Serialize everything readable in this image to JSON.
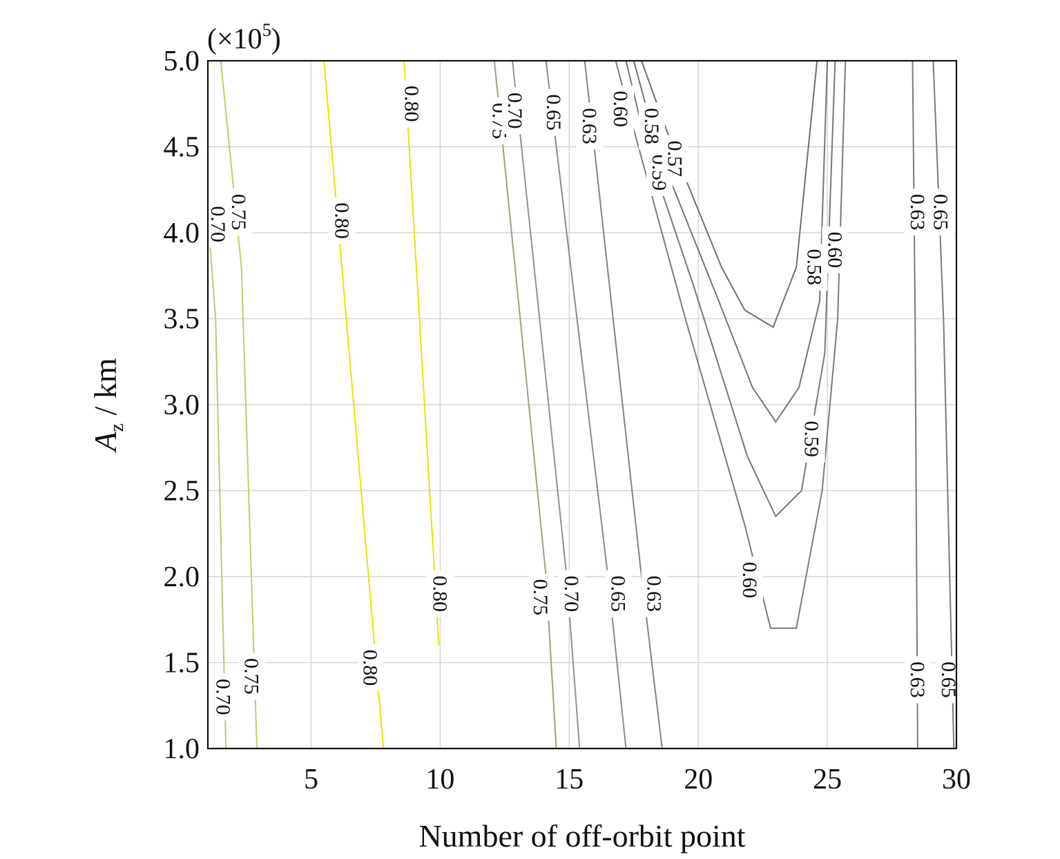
{
  "chart_data": {
    "type": "contour",
    "title": "",
    "xlabel": "Number of off-orbit point",
    "ylabel_main": "A",
    "ylabel_sub": "z",
    "ylabel_unit": " / km",
    "y_multiplier": "(×10",
    "y_multiplier_exp": "5",
    "y_multiplier_close": ")",
    "xlim": [
      1,
      30
    ],
    "ylim": [
      1.0,
      5.0
    ],
    "x_ticks": [
      5,
      10,
      15,
      20,
      25,
      30
    ],
    "x_tick_labels": [
      "5",
      "10",
      "15",
      "20",
      "25",
      "30"
    ],
    "y_ticks": [
      1.0,
      1.5,
      2.0,
      2.5,
      3.0,
      3.5,
      4.0,
      4.5,
      5.0
    ],
    "y_tick_labels": [
      "1.0",
      "1.5",
      "2.0",
      "2.5",
      "3.0",
      "3.5",
      "4.0",
      "4.5",
      "5.0"
    ],
    "grid": true,
    "colors": {
      "high": "#e6e600",
      "mid": "#c9c98a",
      "low": "#7a7a7a"
    },
    "contours": [
      {
        "level": "0.70",
        "color": "#c4c47a",
        "points": [
          [
            1.0,
            4.1
          ],
          [
            1.3,
            3.5
          ],
          [
            1.7,
            1.0
          ]
        ],
        "labels": [
          {
            "x": 1.4,
            "y": 4.05,
            "text": "0.70"
          },
          {
            "x": 1.6,
            "y": 1.3,
            "text": "0.70"
          }
        ]
      },
      {
        "level": "0.75",
        "color": "#c9c96a",
        "points": [
          [
            1.5,
            5.0
          ],
          [
            2.3,
            3.8
          ],
          [
            2.9,
            1.0
          ]
        ],
        "labels": [
          {
            "x": 2.2,
            "y": 4.12,
            "text": "0.75"
          },
          {
            "x": 2.7,
            "y": 1.42,
            "text": "0.75"
          }
        ]
      },
      {
        "level": "0.80",
        "color": "#e6e600",
        "points": [
          [
            5.5,
            5.0
          ],
          [
            7.8,
            1.0
          ]
        ],
        "labels": [
          {
            "x": 6.2,
            "y": 4.07,
            "text": "0.80"
          },
          {
            "x": 7.3,
            "y": 1.47,
            "text": "0.80"
          }
        ]
      },
      {
        "level": "0.80",
        "color": "#e6e600",
        "points": [
          [
            8.6,
            5.0
          ],
          [
            9.95,
            1.6
          ]
        ],
        "labels": [
          {
            "x": 8.9,
            "y": 4.75,
            "text": "0.80"
          },
          {
            "x": 10.0,
            "y": 1.9,
            "text": "0.80"
          }
        ]
      },
      {
        "level": "0.75",
        "color": "#a0a07a",
        "points": [
          [
            12.1,
            5.0
          ],
          [
            14.1,
            2.0
          ],
          [
            14.5,
            1.0
          ]
        ],
        "labels": [
          {
            "x": 12.3,
            "y": 4.65,
            "text": "0.75"
          },
          {
            "x": 13.9,
            "y": 1.88,
            "text": "0.75"
          }
        ]
      },
      {
        "level": "0.70",
        "color": "#909090",
        "points": [
          [
            12.8,
            5.0
          ],
          [
            14.9,
            2.0
          ],
          [
            15.4,
            1.0
          ]
        ],
        "labels": [
          {
            "x": 12.9,
            "y": 4.71,
            "text": "0.70"
          },
          {
            "x": 15.1,
            "y": 1.9,
            "text": "0.70"
          }
        ]
      },
      {
        "level": "0.65",
        "color": "#8a8a8a",
        "points": [
          [
            14.1,
            5.0
          ],
          [
            16.5,
            2.0
          ],
          [
            17.2,
            1.0
          ]
        ],
        "labels": [
          {
            "x": 14.4,
            "y": 4.7,
            "text": "0.65"
          },
          {
            "x": 16.9,
            "y": 1.9,
            "text": "0.65"
          }
        ]
      },
      {
        "level": "0.63",
        "color": "#828282",
        "points": [
          [
            15.6,
            5.0
          ],
          [
            17.8,
            2.0
          ],
          [
            18.6,
            1.0
          ]
        ],
        "labels": [
          {
            "x": 15.8,
            "y": 4.62,
            "text": "0.63"
          },
          {
            "x": 18.3,
            "y": 1.9,
            "text": "0.63"
          }
        ]
      },
      {
        "level": "0.60",
        "color": "#7a7a7a",
        "points": [
          [
            16.8,
            5.0
          ],
          [
            17.5,
            4.6
          ],
          [
            19.5,
            3.5
          ],
          [
            21.8,
            2.3
          ],
          [
            22.8,
            1.7
          ],
          [
            23.8,
            1.7
          ],
          [
            24.8,
            2.5
          ],
          [
            25.4,
            3.5
          ],
          [
            25.7,
            5.0
          ]
        ],
        "labels": [
          {
            "x": 17.0,
            "y": 4.72,
            "text": "0.60"
          },
          {
            "x": 22.0,
            "y": 1.98,
            "text": "0.60"
          },
          {
            "x": 25.3,
            "y": 3.9,
            "text": "0.60"
          }
        ]
      },
      {
        "level": "0.59",
        "color": "#777777",
        "points": [
          [
            17.2,
            5.0
          ],
          [
            18.0,
            4.5
          ],
          [
            19.8,
            3.7
          ],
          [
            21.9,
            2.7
          ],
          [
            23.0,
            2.35
          ],
          [
            24.0,
            2.5
          ],
          [
            24.9,
            3.3
          ],
          [
            25.3,
            5.0
          ]
        ],
        "labels": [
          {
            "x": 18.5,
            "y": 4.35,
            "text": "0.59"
          },
          {
            "x": 24.4,
            "y": 2.8,
            "text": "0.59"
          }
        ]
      },
      {
        "level": "0.58",
        "color": "#747474",
        "points": [
          [
            17.5,
            5.0
          ],
          [
            18.4,
            4.5
          ],
          [
            20.8,
            3.6
          ],
          [
            22.1,
            3.1
          ],
          [
            23.0,
            2.9
          ],
          [
            23.9,
            3.1
          ],
          [
            24.7,
            3.6
          ],
          [
            25.0,
            5.0
          ]
        ],
        "labels": [
          {
            "x": 18.2,
            "y": 4.62,
            "text": "0.58"
          },
          {
            "x": 24.5,
            "y": 3.8,
            "text": "0.58"
          }
        ]
      },
      {
        "level": "0.57",
        "color": "#707070",
        "points": [
          [
            17.8,
            5.0
          ],
          [
            19.0,
            4.5
          ],
          [
            20.9,
            3.8
          ],
          [
            21.8,
            3.55
          ],
          [
            22.9,
            3.45
          ],
          [
            23.8,
            3.8
          ],
          [
            24.6,
            5.0
          ]
        ],
        "labels": [
          {
            "x": 19.1,
            "y": 4.43,
            "text": "0.57"
          }
        ]
      },
      {
        "level": "0.63",
        "color": "#7a7a7a",
        "points": [
          [
            28.3,
            5.0
          ],
          [
            28.4,
            3.5
          ],
          [
            28.5,
            1.0
          ]
        ],
        "labels": [
          {
            "x": 28.5,
            "y": 4.12,
            "text": "0.63"
          },
          {
            "x": 28.5,
            "y": 1.4,
            "text": "0.63"
          }
        ]
      },
      {
        "level": "0.65",
        "color": "#7a7a7a",
        "points": [
          [
            29.1,
            5.0
          ],
          [
            29.5,
            3.5
          ],
          [
            29.9,
            1.0
          ]
        ],
        "labels": [
          {
            "x": 29.4,
            "y": 4.12,
            "text": "0.65"
          },
          {
            "x": 29.7,
            "y": 1.4,
            "text": "0.65"
          }
        ]
      }
    ]
  }
}
